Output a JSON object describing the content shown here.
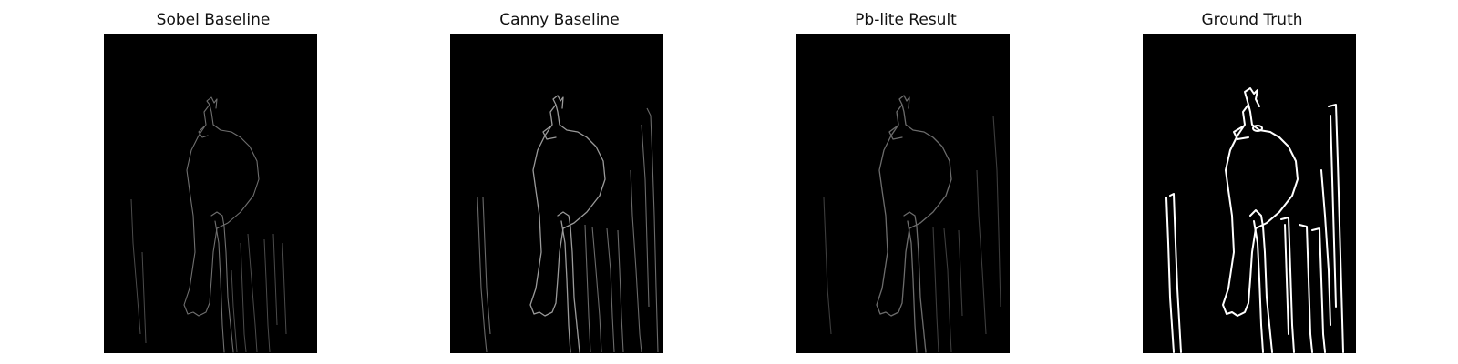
{
  "panels": [
    {
      "title": "Sobel Baseline",
      "image": "edge-map-sobel"
    },
    {
      "title": "Canny Baseline",
      "image": "edge-map-canny"
    },
    {
      "title": "Pb-lite Result",
      "image": "edge-map-pb-lite"
    },
    {
      "title": "Ground Truth",
      "image": "edge-map-ground-truth"
    }
  ]
}
